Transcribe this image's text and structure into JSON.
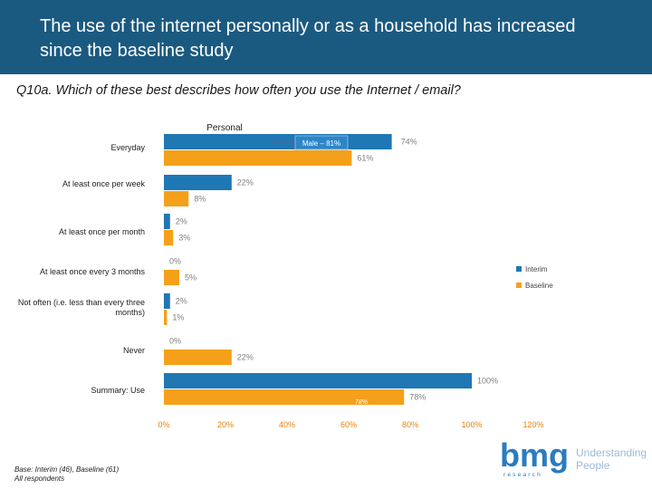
{
  "header": {
    "title": "The use of the internet personally or as a household has increased since the baseline study"
  },
  "question": "Q10a. Which of these best describes how often you use the Internet / email?",
  "footnote": {
    "line1": "Base: Interim (46), Baseline (61)",
    "line2": "All respondents"
  },
  "logo": {
    "wordmark": "bmg",
    "sub": "research",
    "tagline1": "Understanding",
    "tagline2": "People"
  },
  "colors": {
    "header": "#1b5a80",
    "interim": "#1f77b4",
    "baseline": "#f5a01a",
    "axis_text": "#e8820c",
    "label_text": "#7f7f7f"
  },
  "chart_data": {
    "type": "bar",
    "orientation": "horizontal",
    "title": "Personal",
    "categories": [
      "Everyday",
      "At least once per week",
      "At least once per month",
      "At least once every 3 months",
      "Not often (i.e. less than every three months)",
      "Never",
      "Summary: Use"
    ],
    "series": [
      {
        "name": "Interim",
        "color": "#1f77b4",
        "values": [
          74,
          22,
          2,
          0,
          2,
          0,
          100
        ]
      },
      {
        "name": "Baseline",
        "color": "#f5a01a",
        "values": [
          61,
          8,
          3,
          5,
          1,
          22,
          78
        ]
      }
    ],
    "xlim": [
      0,
      120
    ],
    "xticks": [
      "0%",
      "20%",
      "40%",
      "60%",
      "80%",
      "100%",
      "120%"
    ],
    "value_suffix": "%",
    "legend_position": "right",
    "annotations": [
      {
        "text": "Male – 81%"
      },
      {
        "text": "78%"
      }
    ]
  }
}
